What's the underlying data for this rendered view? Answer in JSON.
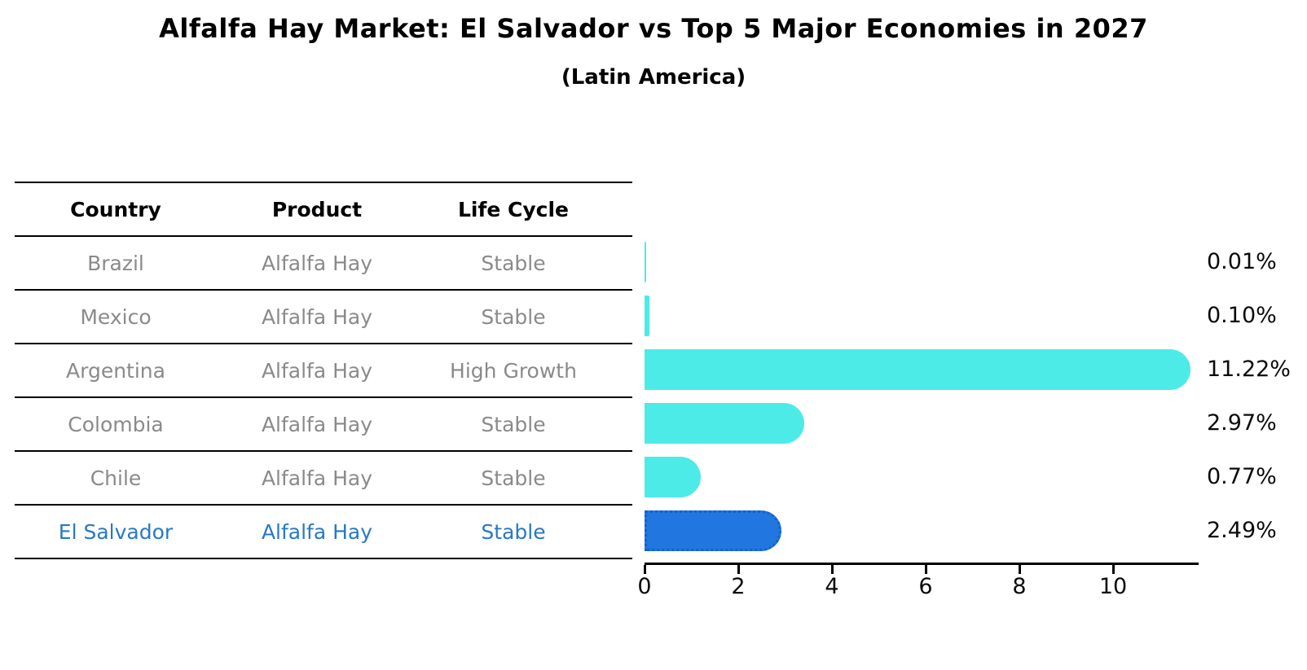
{
  "title": "Alfalfa Hay Market: El Salvador vs Top 5 Major Economies in 2027",
  "subtitle": "(Latin America)",
  "table": {
    "headers": [
      "Country",
      "Product",
      "Life Cycle"
    ],
    "rows": [
      {
        "country": "Brazil",
        "product": "Alfalfa Hay",
        "life_cycle": "Stable",
        "highlight": false
      },
      {
        "country": "Mexico",
        "product": "Alfalfa Hay",
        "life_cycle": "Stable",
        "highlight": false
      },
      {
        "country": "Argentina",
        "product": "Alfalfa Hay",
        "life_cycle": "High Growth",
        "highlight": false
      },
      {
        "country": "Colombia",
        "product": "Alfalfa Hay",
        "life_cycle": "Stable",
        "highlight": false
      },
      {
        "country": "Chile",
        "product": "Alfalfa Hay",
        "life_cycle": "Stable",
        "highlight": false
      },
      {
        "country": "El Salvador",
        "product": "Alfalfa Hay",
        "life_cycle": "Stable",
        "highlight": true
      }
    ]
  },
  "chart_data": {
    "type": "bar",
    "orientation": "horizontal",
    "title": "Alfalfa Hay Market: El Salvador vs Top 5 Major Economies in 2027",
    "subtitle": "(Latin America)",
    "categories": [
      "Brazil",
      "Mexico",
      "Argentina",
      "Colombia",
      "Chile",
      "El Salvador"
    ],
    "values": [
      0.01,
      0.1,
      11.22,
      2.97,
      0.77,
      2.49
    ],
    "value_labels": [
      "0.01%",
      "0.10%",
      "11.22%",
      "2.97%",
      "0.77%",
      "2.49%"
    ],
    "x_ticks": [
      0,
      2,
      4,
      6,
      8,
      10
    ],
    "x_tick_labels": [
      "0",
      "2",
      "4",
      "6",
      "8",
      "10"
    ],
    "xlim": [
      0,
      11.77
    ],
    "grid": false,
    "legend": "none",
    "highlight_index": 5,
    "colors": {
      "bar": "#4debe8",
      "highlight_bar": "#2176e0",
      "highlight_border": "#1161d2",
      "highlight_text": "#2878c8",
      "table_text": "#8a8a8a",
      "axis": "#000000"
    }
  }
}
